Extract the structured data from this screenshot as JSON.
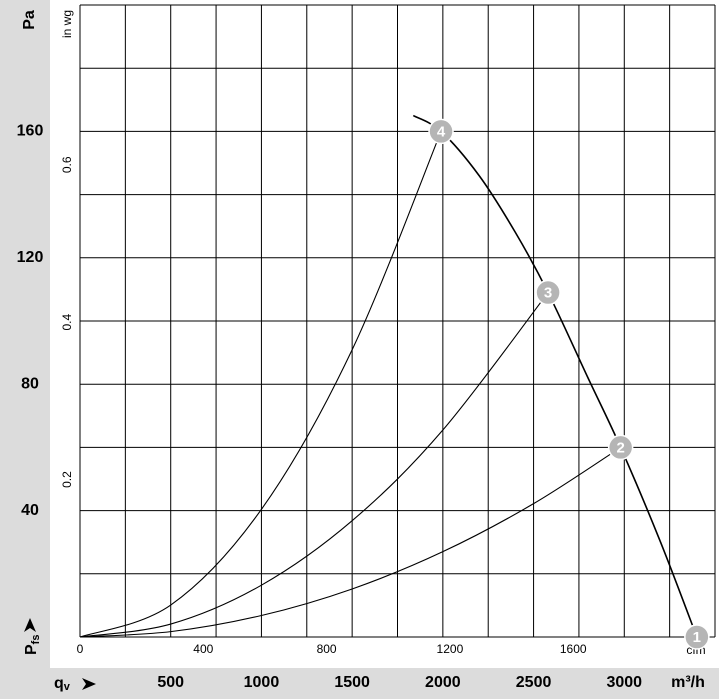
{
  "chart_data": {
    "type": "line",
    "y_label": "Pa",
    "y_label_bottom": {
      "main": "P",
      "sub": "fs"
    },
    "x_label": {
      "main": "q",
      "sub": "v"
    },
    "x_unit": "m³/h",
    "y2_label": "in wg",
    "x2_label": "cfm",
    "xlim": [
      0,
      3500
    ],
    "xticks": [
      500,
      1000,
      1500,
      2000,
      2500,
      3000
    ],
    "xgrid": [
      0,
      250,
      500,
      750,
      1000,
      1250,
      1500,
      1750,
      2000,
      2250,
      2500,
      2750,
      3000,
      3250,
      3500
    ],
    "ylim": [
      0,
      200
    ],
    "yticks": [
      40,
      80,
      120,
      160
    ],
    "ygrid": [
      0,
      20,
      40,
      60,
      80,
      100,
      120,
      140,
      160,
      180,
      200
    ],
    "x2lim": [
      0,
      2060
    ],
    "x2ticks": [
      0,
      400,
      800,
      1200,
      1600
    ],
    "y2lim": [
      0,
      0.803
    ],
    "y2ticks": [
      0.2,
      0.4,
      0.6
    ],
    "series": [
      {
        "color": "#000000",
        "x": [
          1837,
          1990,
          2200,
          2400,
          2580,
          2800,
          2980,
          3200,
          3400
        ],
        "values": [
          165,
          160,
          146,
          128,
          109,
          82,
          60,
          30,
          0
        ]
      },
      {
        "color": "#000000",
        "x": [
          0,
          500,
          1000,
          1500,
          2000,
          2500,
          2980
        ],
        "values": [
          0,
          1.7,
          6.8,
          15.2,
          27,
          42.2,
          60
        ]
      },
      {
        "color": "#000000",
        "x": [
          0,
          500,
          1000,
          1500,
          2000,
          2580
        ],
        "values": [
          0,
          4.1,
          16.4,
          36.8,
          65.5,
          109
        ]
      },
      {
        "color": "#000000",
        "x": [
          0,
          500,
          1000,
          1500,
          1990
        ],
        "values": [
          0,
          10.1,
          40.4,
          90.9,
          160
        ]
      }
    ],
    "points": [
      {
        "label": "1",
        "x": 3400,
        "y": 0
      },
      {
        "label": "2",
        "x": 2980,
        "y": 60
      },
      {
        "label": "3",
        "x": 2580,
        "y": 109
      },
      {
        "label": "4",
        "x": 1990,
        "y": 160
      }
    ],
    "point_color": "#b5b5b5"
  }
}
